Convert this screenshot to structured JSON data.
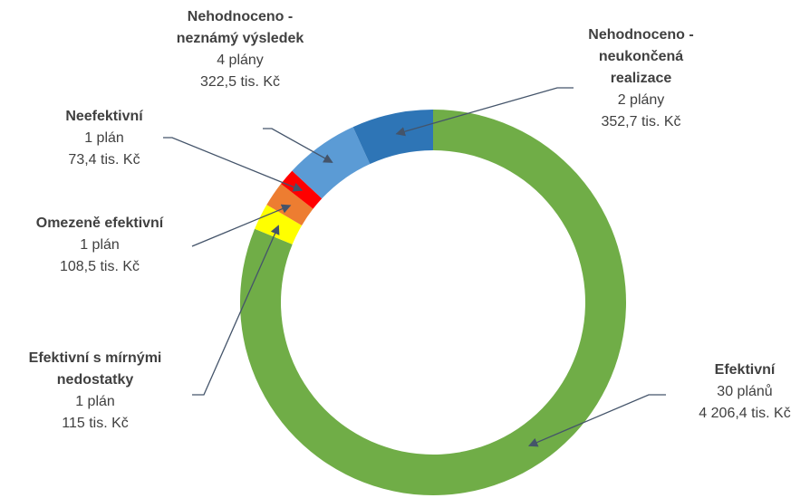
{
  "chart_data": {
    "type": "donut",
    "categories": [
      "Efektivní",
      "Efektivní s mírnými nedostatky",
      "Omezeně efektivní",
      "Neefektivní",
      "Nehodnoceno - neznámý výsledek",
      "Nehodnoceno - neukončená realizace"
    ],
    "counts": [
      "30 plánů",
      "1 plán",
      "1 plán",
      "1 plán",
      "4 plány",
      "2 plány"
    ],
    "values": [
      4206.4,
      115,
      108.5,
      73.4,
      322.5,
      352.7
    ],
    "value_labels": [
      "4 206,4 tis. Kč",
      "115 tis. Kč",
      "108,5 tis. Kč",
      "73,4 tis. Kč",
      "322,5 tis. Kč",
      "352,7 tis. Kč"
    ],
    "colors": [
      "#70ad47",
      "#ffff00",
      "#ed7d31",
      "#ff0000",
      "#5b9bd5",
      "#2e75b6"
    ]
  }
}
